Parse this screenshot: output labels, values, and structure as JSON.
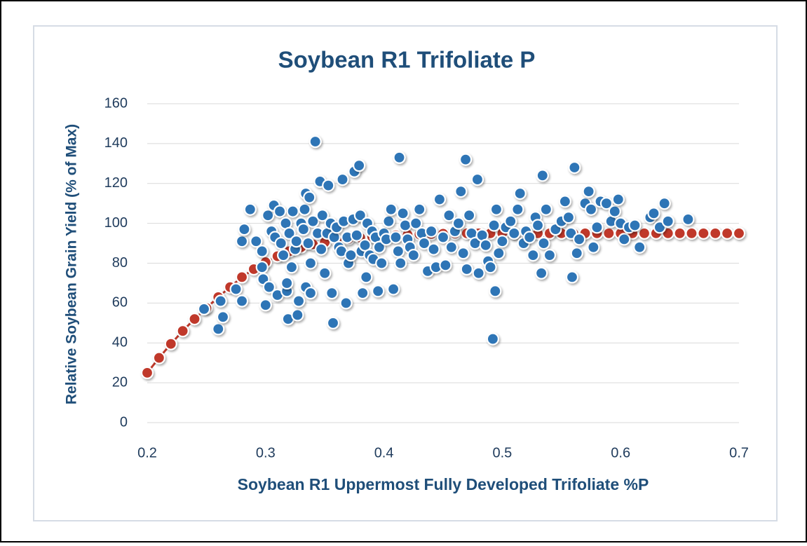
{
  "chart_data": {
    "type": "scatter",
    "title": "Soybean R1 Trifoliate P",
    "xlabel": "Soybean R1 Uppermost Fully Developed Trifoliate %P",
    "ylabel": "Relative Soybean Grain Yield (% of Max)",
    "xlim": [
      0.2,
      0.7
    ],
    "xticks": [
      0.2,
      0.3,
      0.4,
      0.5,
      0.6,
      0.7
    ],
    "ylim": [
      0,
      160
    ],
    "yticks": [
      0,
      20,
      40,
      60,
      80,
      100,
      120,
      140,
      160
    ],
    "grid": true,
    "series": [
      {
        "color": "#c0392b",
        "line": true,
        "x": [
          0.2,
          0.21,
          0.22,
          0.23,
          0.24,
          0.25,
          0.26,
          0.27,
          0.28,
          0.29,
          0.3,
          0.31,
          0.32,
          0.33,
          0.34,
          0.35,
          0.36,
          0.37,
          0.38,
          0.39,
          0.4,
          0.41,
          0.42,
          0.43,
          0.44,
          0.45,
          0.46,
          0.47,
          0.48,
          0.49,
          0.5,
          0.51,
          0.52,
          0.53,
          0.54,
          0.55,
          0.56,
          0.57,
          0.58,
          0.59,
          0.6,
          0.61,
          0.62,
          0.63,
          0.64,
          0.65,
          0.66,
          0.67,
          0.68,
          0.69,
          0.7
        ],
        "values": [
          25,
          32.5,
          39.5,
          46,
          52,
          57.5,
          63,
          68,
          73,
          77,
          80.5,
          83.5,
          86,
          88,
          89.5,
          90.5,
          91.5,
          92.2,
          92.8,
          93.3,
          93.7,
          94,
          94.3,
          94.5,
          94.7,
          94.8,
          94.9,
          95,
          95,
          95,
          95,
          95,
          95,
          95,
          95,
          95,
          95,
          95,
          95,
          95,
          95,
          95,
          95,
          95,
          95,
          95,
          95,
          95,
          95,
          95,
          95
        ]
      },
      {
        "color": "#2e75b6",
        "line": false,
        "x": [
          0.248,
          0.26,
          0.262,
          0.264,
          0.275,
          0.28,
          0.28,
          0.282,
          0.287,
          0.292,
          0.297,
          0.297,
          0.298,
          0.3,
          0.302,
          0.303,
          0.305,
          0.307,
          0.308,
          0.31,
          0.312,
          0.313,
          0.315,
          0.317,
          0.318,
          0.318,
          0.319,
          0.32,
          0.322,
          0.323,
          0.325,
          0.326,
          0.327,
          0.328,
          0.33,
          0.332,
          0.333,
          0.334,
          0.334,
          0.336,
          0.337,
          0.338,
          0.338,
          0.34,
          0.342,
          0.344,
          0.346,
          0.347,
          0.348,
          0.35,
          0.352,
          0.353,
          0.355,
          0.356,
          0.357,
          0.358,
          0.36,
          0.362,
          0.364,
          0.365,
          0.366,
          0.368,
          0.369,
          0.37,
          0.372,
          0.374,
          0.375,
          0.377,
          0.379,
          0.38,
          0.381,
          0.382,
          0.384,
          0.385,
          0.386,
          0.388,
          0.39,
          0.391,
          0.393,
          0.395,
          0.396,
          0.398,
          0.4,
          0.402,
          0.404,
          0.406,
          0.408,
          0.41,
          0.412,
          0.413,
          0.414,
          0.416,
          0.418,
          0.42,
          0.422,
          0.425,
          0.427,
          0.43,
          0.432,
          0.434,
          0.437,
          0.44,
          0.442,
          0.444,
          0.447,
          0.45,
          0.452,
          0.455,
          0.457,
          0.46,
          0.463,
          0.465,
          0.467,
          0.469,
          0.47,
          0.472,
          0.474,
          0.477,
          0.479,
          0.48,
          0.483,
          0.486,
          0.488,
          0.49,
          0.492,
          0.493,
          0.494,
          0.495,
          0.497,
          0.5,
          0.503,
          0.507,
          0.51,
          0.513,
          0.515,
          0.518,
          0.52,
          0.523,
          0.526,
          0.528,
          0.53,
          0.533,
          0.534,
          0.535,
          0.537,
          0.54,
          0.545,
          0.55,
          0.553,
          0.556,
          0.558,
          0.559,
          0.561,
          0.563,
          0.565,
          0.57,
          0.573,
          0.575,
          0.577,
          0.58,
          0.583,
          0.588,
          0.592,
          0.595,
          0.598,
          0.6,
          0.603,
          0.607,
          0.612,
          0.616,
          0.625,
          0.628,
          0.633,
          0.637,
          0.64,
          0.657
        ],
        "values": [
          57,
          47,
          61,
          53,
          67,
          61,
          91,
          97,
          107,
          91,
          86,
          78,
          72,
          59,
          104,
          68,
          96,
          109,
          93,
          64,
          106,
          90,
          84,
          100,
          66,
          70,
          52,
          95,
          78,
          106,
          87,
          91,
          54,
          61,
          100,
          97,
          107,
          115,
          68,
          90,
          113,
          80,
          65,
          101,
          141,
          95,
          121,
          87,
          104,
          75,
          95,
          119,
          100,
          65,
          50,
          93,
          98,
          88,
          86,
          122,
          101,
          60,
          93,
          80,
          84,
          102,
          126,
          94,
          129,
          104,
          86,
          65,
          89,
          73,
          100,
          84,
          96,
          82,
          93,
          66,
          88,
          80,
          95,
          92,
          101,
          107,
          67,
          93,
          86,
          133,
          80,
          105,
          99,
          92,
          88,
          84,
          100,
          107,
          95,
          90,
          76,
          96,
          87,
          78,
          112,
          93,
          79,
          104,
          88,
          96,
          100,
          116,
          85,
          132,
          77,
          104,
          95,
          90,
          122,
          75,
          94,
          89,
          81,
          78,
          42,
          99,
          66,
          107,
          85,
          91,
          98,
          101,
          95,
          107,
          115,
          90,
          96,
          93,
          84,
          103,
          99,
          75,
          124,
          90,
          107,
          84,
          97,
          101,
          111,
          103,
          95,
          73,
          128,
          85,
          92,
          110,
          116,
          107,
          88,
          98,
          111,
          110,
          101,
          106,
          112,
          100,
          92,
          98,
          99,
          88,
          103,
          105,
          98,
          110,
          101,
          102
        ]
      }
    ]
  }
}
